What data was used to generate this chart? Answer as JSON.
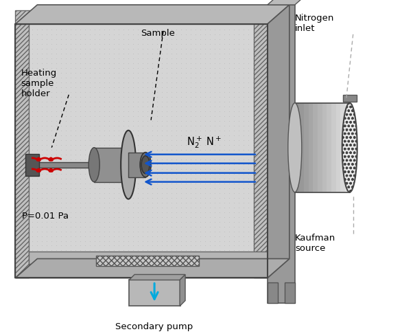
{
  "bg_color": "#ffffff",
  "labels": {
    "heating_sample": "Heating\nsample\nholder",
    "sample": "Sample",
    "pressure": "P=0.01 Pa",
    "nitrogen_inlet": "Nitrogen\ninlet",
    "kaufman_source": "Kaufman\nsource",
    "secondary_pump": "Secondary pump"
  },
  "label_fontsize": 9.5,
  "label_color": "#000000",
  "blue_color": "#1155cc",
  "cyan_color": "#00aadd",
  "red_color": "#cc0000",
  "gray_dark": "#777777",
  "gray_mid": "#aaaaaa",
  "gray_light": "#cccccc",
  "gray_lighter": "#e0e0e0",
  "hatch_fill": "#bbbbbb",
  "chamber_inner": "#d5d5d5"
}
